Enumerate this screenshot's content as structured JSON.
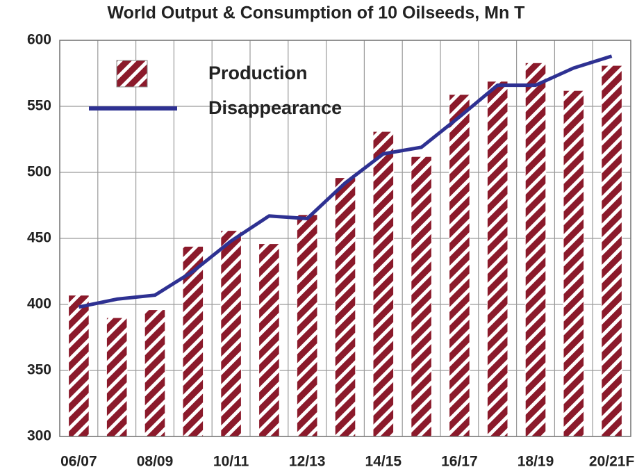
{
  "chart_data": {
    "type": "bar",
    "title": "World Output & Consumption of 10 Oilseeds, Mn T",
    "categories": [
      "06/07",
      null,
      "08/09",
      null,
      "10/11",
      null,
      "12/13",
      null,
      "14/15",
      null,
      "16/17",
      null,
      "18/19",
      null,
      "20/21F"
    ],
    "series": [
      {
        "name": "Production",
        "type": "bar",
        "color": "#8b1a2b",
        "values": [
          407,
          390,
          396,
          444,
          456,
          446,
          468,
          496,
          531,
          512,
          559,
          569,
          583,
          562,
          581
        ]
      },
      {
        "name": "Disappearance",
        "type": "line",
        "color": "#2e3192",
        "values": [
          398,
          404,
          407,
          425,
          448,
          467,
          465,
          492,
          514,
          519,
          542,
          566,
          566,
          579,
          588
        ]
      }
    ],
    "ylim": [
      300,
      600
    ],
    "yticks": [
      300,
      350,
      400,
      450,
      500,
      550,
      600
    ],
    "grid": true,
    "legend": "upper left"
  }
}
